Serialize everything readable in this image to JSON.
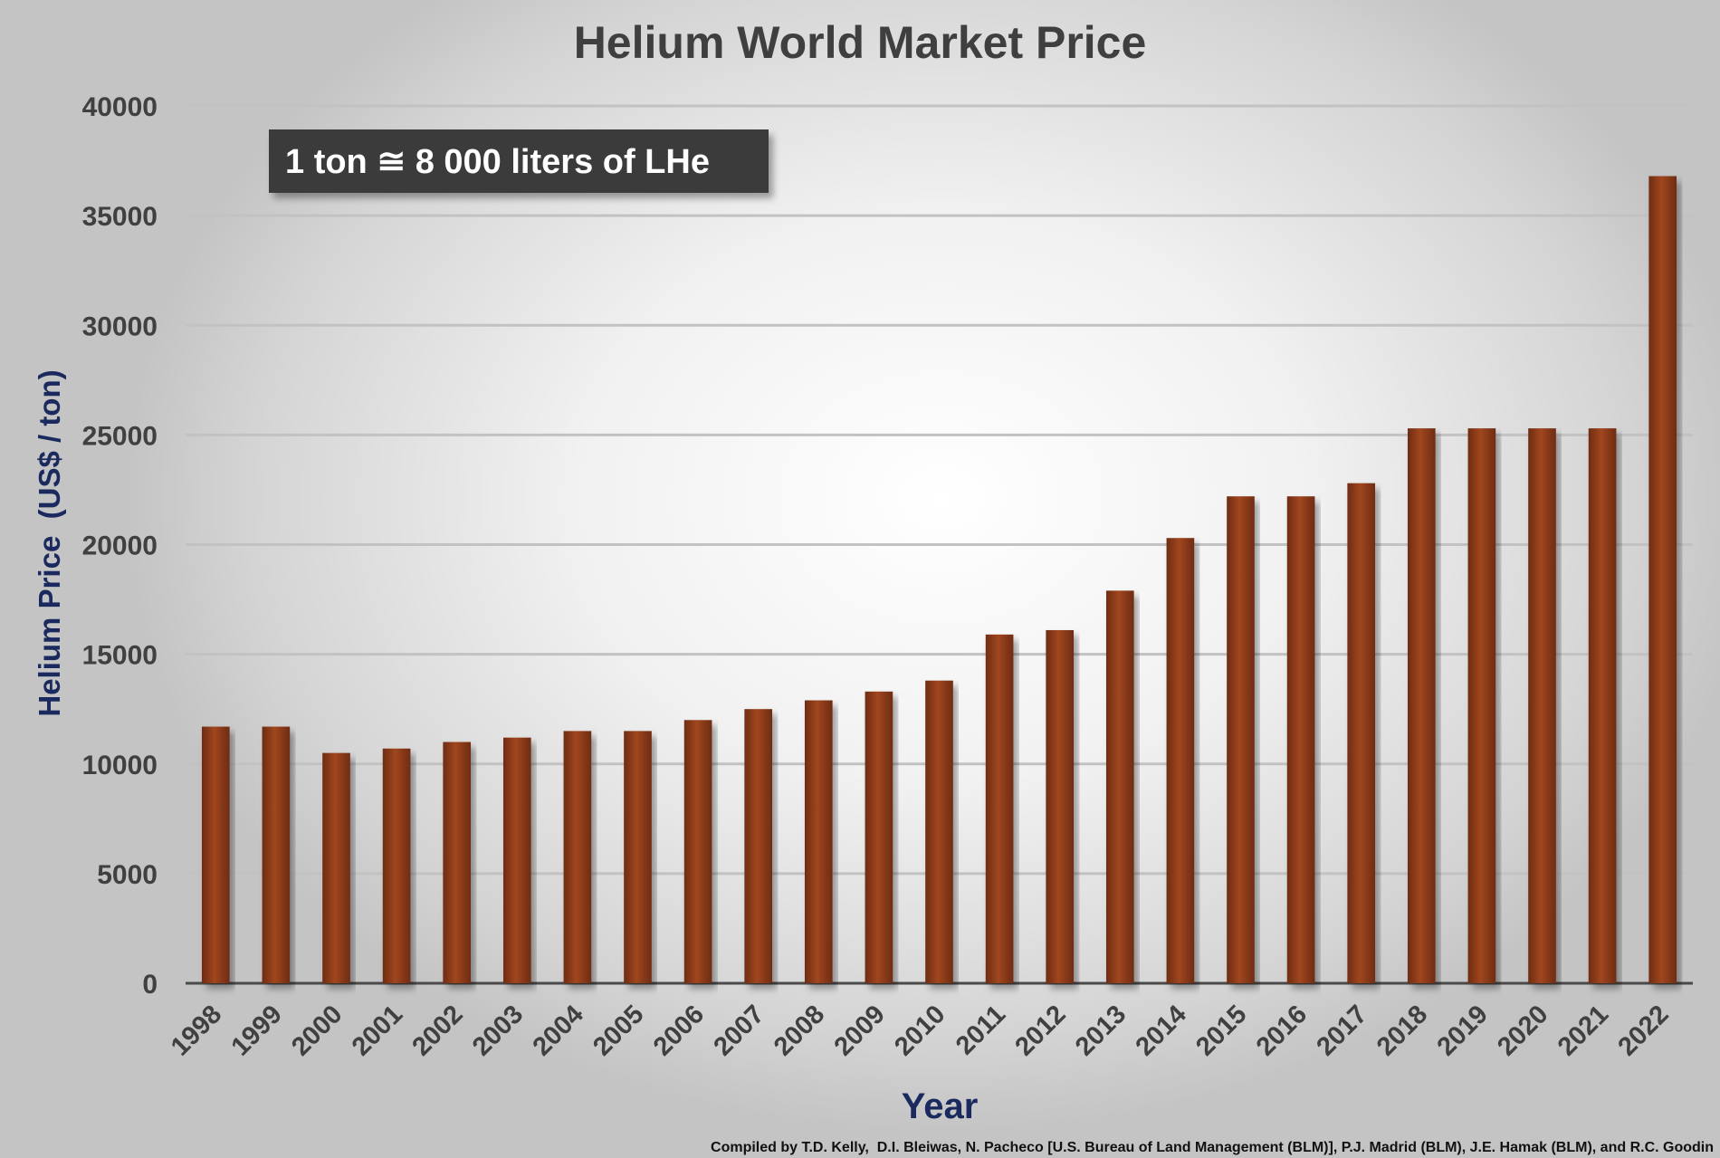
{
  "chart_data": {
    "type": "bar",
    "title": "Helium World Market Price",
    "xlabel": "Year",
    "ylabel": "Helium Price  (US$ / ton)",
    "ylim": [
      0,
      40000
    ],
    "yticks": [
      0,
      5000,
      10000,
      15000,
      20000,
      25000,
      30000,
      35000,
      40000
    ],
    "grid": true,
    "categories": [
      "1998",
      "1999",
      "2000",
      "2001",
      "2002",
      "2003",
      "2004",
      "2005",
      "2006",
      "2007",
      "2008",
      "2009",
      "2010",
      "2011",
      "2012",
      "2013",
      "2014",
      "2015",
      "2016",
      "2017",
      "2018",
      "2019",
      "2020",
      "2021",
      "2022"
    ],
    "values": [
      11700,
      11700,
      10500,
      10700,
      11000,
      11200,
      11500,
      11500,
      12000,
      12500,
      12900,
      13300,
      13800,
      15900,
      16100,
      17900,
      20300,
      22200,
      22200,
      22800,
      25300,
      25300,
      25300,
      25300,
      36800
    ],
    "bar_color": "#8b3a1c",
    "annotation": "1 ton ≅ 8 000 liters of LHe",
    "credit": "Compiled by T.D. Kelly,  D.I. Bleiwas, N. Pacheco [U.S. Bureau of Land Management (BLM)], P.J. Madrid (BLM), J.E. Hamak (BLM), and R.C. Goodin"
  }
}
